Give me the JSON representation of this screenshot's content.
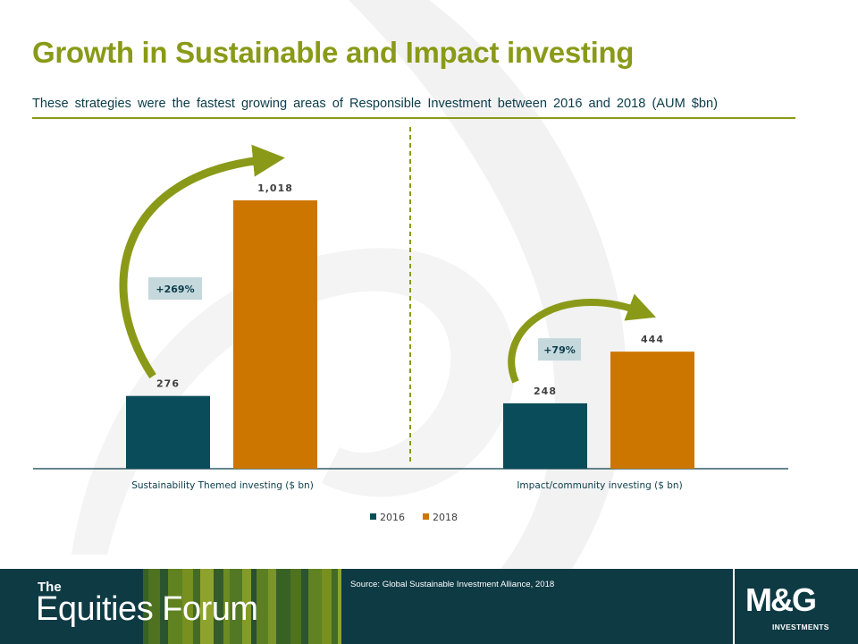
{
  "header": {
    "title": "Growth in Sustainable and Impact investing",
    "subtitle": "These strategies were the fastest growing areas of Responsible Investment between 2016 and 2018 (AUM $bn)"
  },
  "chart_data": {
    "type": "bar",
    "categories": [
      "Sustainability Themed investing ($ bn)",
      "Impact/community investing ($ bn)"
    ],
    "series": [
      {
        "name": "2016",
        "values": [
          276,
          248
        ],
        "labels": [
          "276",
          "248"
        ],
        "color": "#0b4c5a"
      },
      {
        "name": "2018",
        "values": [
          1018,
          444
        ],
        "labels": [
          "1,018",
          "444"
        ],
        "color": "#cc7600"
      }
    ],
    "growth_labels": [
      "+269%",
      "+79%"
    ],
    "ylim": [
      0,
      1100
    ],
    "grid": false,
    "legend_position": "bottom"
  },
  "colors": {
    "accent": "#8a9a18",
    "title_green": "#8a9a18",
    "subtitle_text": "#0b3c4a",
    "footer_bg": "#0e3a44",
    "growth_box": "#c5d9dd"
  },
  "footer": {
    "brand_small": "The",
    "brand_large": "Equities Forum",
    "source": "Source: Global Sustainable Investment Alliance, 2018",
    "logo": "M&G",
    "logo_sub": "INVESTMENTS"
  }
}
